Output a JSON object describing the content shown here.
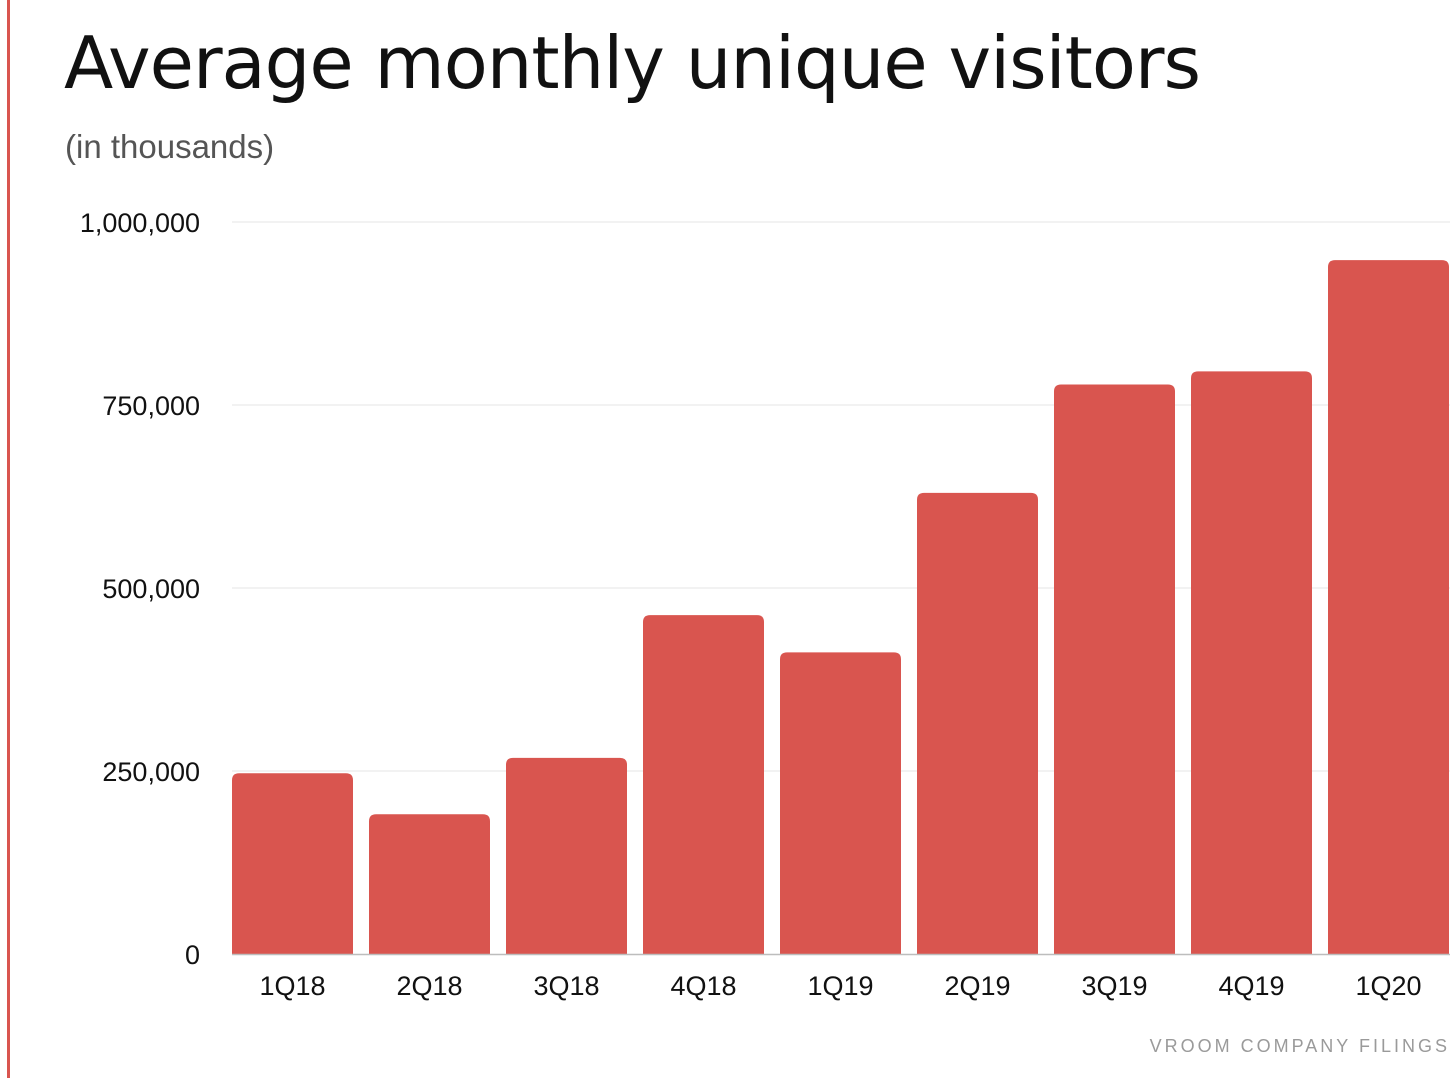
{
  "colors": {
    "accent": "#d9554f",
    "bar": "#d9554f",
    "grid": "#e6e6e6",
    "axis": "#bdbdbd"
  },
  "source": "VROOM COMPANY FILINGS",
  "chart_data": {
    "type": "bar",
    "title": "Average monthly unique visitors",
    "subtitle": "(in thousands)",
    "xlabel": "",
    "ylabel": "",
    "categories": [
      "1Q18",
      "2Q18",
      "3Q18",
      "4Q18",
      "1Q19",
      "2Q19",
      "3Q19",
      "4Q19",
      "1Q20"
    ],
    "values": [
      247000,
      191000,
      268000,
      463000,
      412000,
      630000,
      778000,
      796000,
      948000
    ],
    "ylim": [
      0,
      1000000
    ],
    "yticks": [
      0,
      250000,
      500000,
      750000,
      1000000
    ],
    "ytick_labels": [
      "0",
      "250,000",
      "500,000",
      "750,000",
      "1,000,000"
    ],
    "grid": true,
    "legend": "none"
  }
}
